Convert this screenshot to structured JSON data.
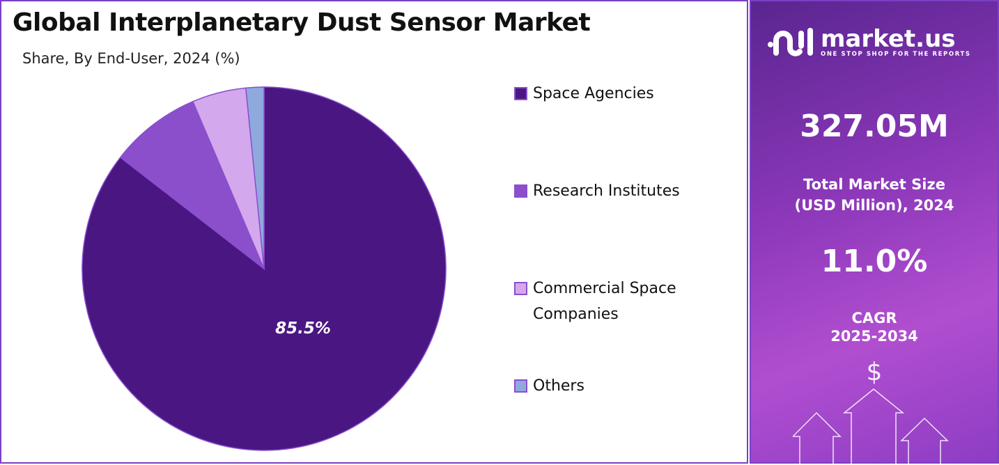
{
  "chart_data": {
    "type": "pie",
    "title": "Global Interplanetary Dust Sensor Market",
    "subtitle": "Share, By End-User, 2024 (%)",
    "categories": [
      "Space Agencies",
      "Research Institutes",
      "Commercial Space Companies",
      "Others"
    ],
    "legend_lines": [
      [
        "Space Agencies"
      ],
      [
        "Research Institutes"
      ],
      [
        "Commercial Space",
        "Companies"
      ],
      [
        "Others"
      ]
    ],
    "values": [
      85.5,
      8.1,
      4.8,
      1.6
    ],
    "colors": [
      "#4a1782",
      "#8b4fcc",
      "#d4a8ec",
      "#8eaadc"
    ],
    "data_labels": [
      "85.5%",
      "",
      "",
      ""
    ],
    "legend_position": "right"
  },
  "side_panel": {
    "logo_name": "market.us",
    "logo_tagline": "ONE STOP SHOP FOR THE REPORTS",
    "market_size": "327.05M",
    "market_size_label_1": "Total Market Size",
    "market_size_label_2": "(USD Million), 2024",
    "cagr": "11.0%",
    "cagr_label_1": "CAGR",
    "cagr_label_2": "2025-2034",
    "dollar": "$"
  }
}
